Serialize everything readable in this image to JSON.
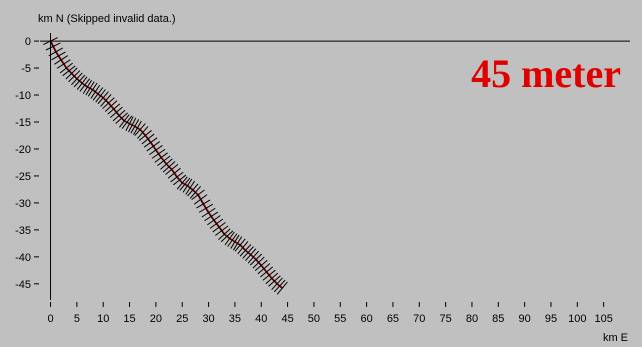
{
  "chart_data": {
    "type": "line",
    "title": "",
    "ylabel": "km N (Skipped invalid data.)",
    "xlabel": "km E",
    "annotation": "45 meter",
    "xlim": [
      -2,
      110
    ],
    "ylim": [
      -48,
      1.5
    ],
    "xticks": [
      0,
      5,
      10,
      15,
      20,
      25,
      30,
      35,
      40,
      45,
      50,
      55,
      60,
      65,
      70,
      75,
      80,
      85,
      90,
      95,
      100,
      105
    ],
    "yticks": [
      0,
      -5,
      -10,
      -15,
      -20,
      -25,
      -30,
      -35,
      -40,
      -45
    ],
    "grid": false,
    "colors": {
      "background": "#c0c0c0",
      "axis": "#000000",
      "track": "#000000",
      "track_highlight": "#cc0000",
      "marker": "#000000",
      "annotation": "#e00000"
    },
    "series": [
      {
        "marker": "cross-tick",
        "x": [
          0,
          1,
          2,
          3,
          4,
          5,
          6,
          7,
          8,
          9,
          10,
          11,
          12,
          13,
          14,
          15,
          16,
          17,
          18,
          19,
          20,
          21,
          22,
          23,
          24,
          25,
          26,
          27,
          28,
          29,
          30,
          31,
          32,
          33,
          34,
          35,
          36,
          37,
          38,
          39,
          40,
          41,
          42,
          43,
          44
        ],
        "y": [
          0,
          -2,
          -3.5,
          -5,
          -6,
          -7,
          -7.8,
          -8.5,
          -9,
          -9.8,
          -10.5,
          -11.5,
          -12.6,
          -13.8,
          -14.8,
          -15.3,
          -15.8,
          -16.4,
          -17.5,
          -18.8,
          -20.2,
          -21.6,
          -22.8,
          -23.8,
          -25.2,
          -26.3,
          -26.8,
          -27.6,
          -28.5,
          -30.2,
          -31.8,
          -33.2,
          -34.5,
          -35.8,
          -36.6,
          -37.2,
          -37.8,
          -38.8,
          -39.6,
          -40.5,
          -41.6,
          -42.8,
          -44,
          -45,
          -45.8
        ]
      }
    ]
  }
}
